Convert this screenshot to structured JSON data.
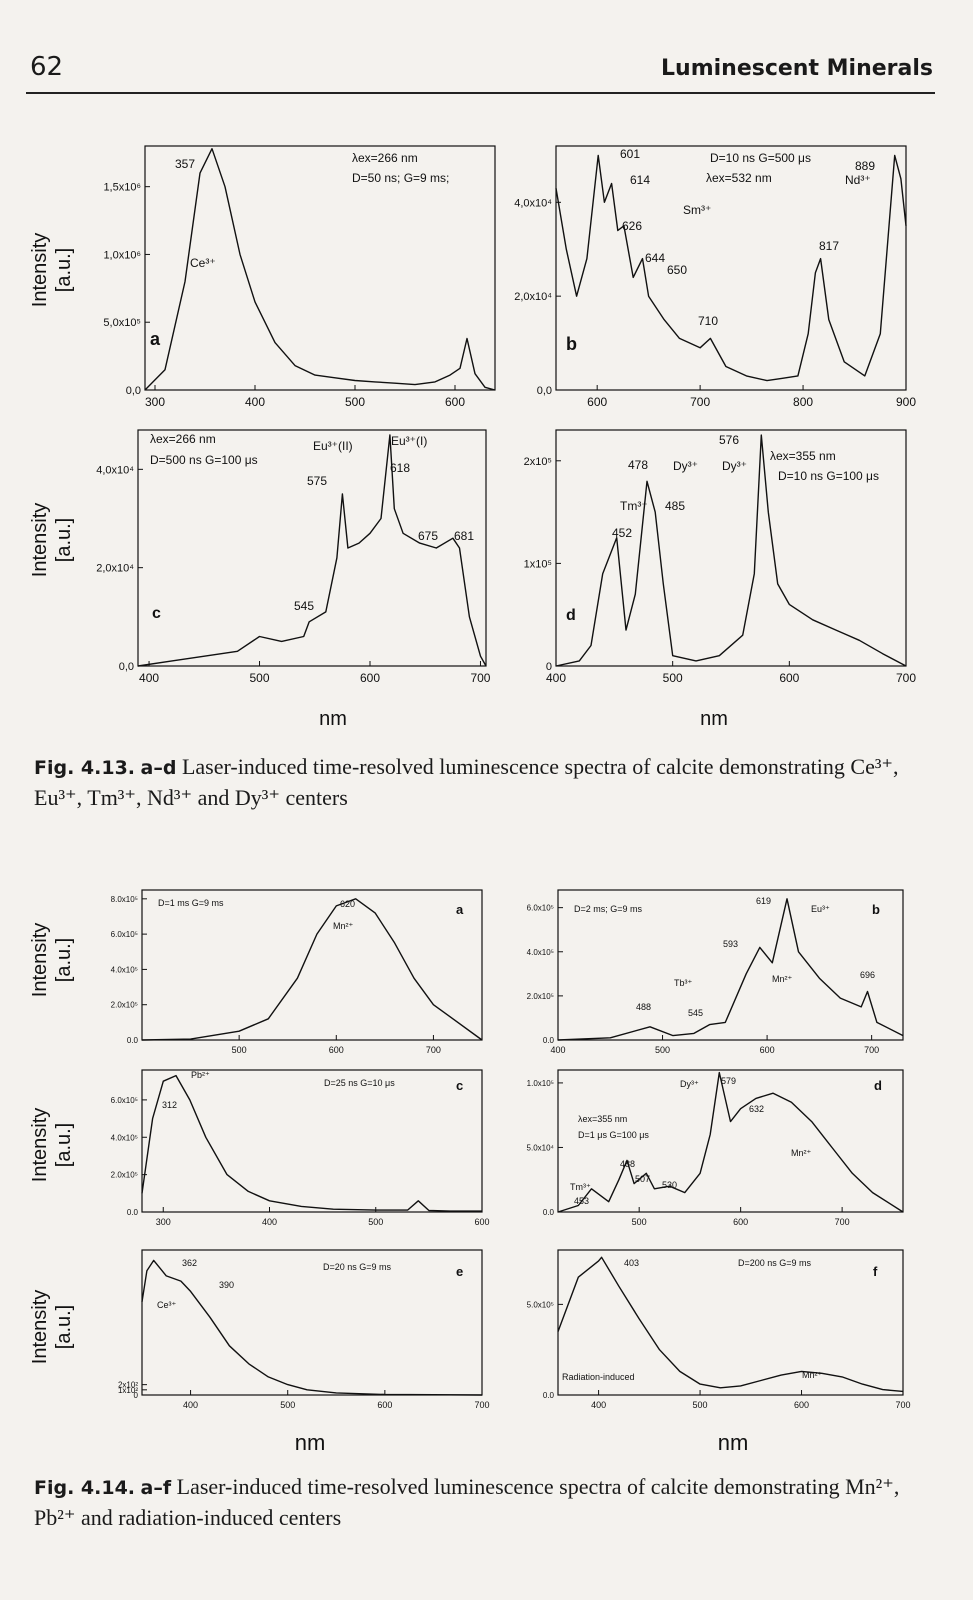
{
  "header": {
    "page_number": "62",
    "running_title": "Luminescent Minerals"
  },
  "fig413": {
    "ylabel": [
      "Intensity",
      "[a.u.]"
    ],
    "xlabel": "nm",
    "caption_label": "Fig. 4.13.",
    "caption_sub": "a–d",
    "caption_text": "Laser-induced time-resolved luminescence spectra of calcite demonstrating Ce³⁺, Eu³⁺, Tm³⁺, Nd³⁺ and Dy³⁺ centers"
  },
  "fig414": {
    "ylabel": [
      "Intensity",
      "[a.u.]"
    ],
    "xlabel": "nm",
    "caption_label": "Fig. 4.14.",
    "caption_sub": "a–f",
    "caption_text": "Laser-induced time-resolved luminescence spectra of calcite demonstrating Mn²⁺, Pb²⁺ and radiation-induced centers"
  },
  "chart_data": [
    {
      "id": "4.13a",
      "type": "line",
      "panel": "a",
      "xlim": [
        290,
        640
      ],
      "ylim": [
        0,
        1800000
      ],
      "xticks": [
        "300",
        "400",
        "500",
        "600"
      ],
      "yticks": [
        "0,0",
        "5,0x10⁵",
        "1,0x10⁶",
        "1,5x10⁶"
      ],
      "annotations": [
        "357",
        "Ce³⁺",
        "λex=266 nm",
        "D=50 ns; G=9 ms;"
      ],
      "x": [
        290,
        310,
        330,
        345,
        357,
        370,
        385,
        400,
        420,
        440,
        460,
        480,
        500,
        520,
        540,
        560,
        580,
        595,
        605,
        612,
        620,
        630,
        640
      ],
      "y": [
        0,
        150000,
        800000,
        1600000,
        1780000,
        1500000,
        1000000,
        650000,
        350000,
        180000,
        110000,
        90000,
        70000,
        60000,
        50000,
        40000,
        60000,
        110000,
        160000,
        380000,
        120000,
        20000,
        0
      ]
    },
    {
      "id": "4.13b",
      "type": "line",
      "panel": "b",
      "xlim": [
        560,
        900
      ],
      "ylim": [
        0,
        52000
      ],
      "xticks": [
        "600",
        "700",
        "800",
        "900"
      ],
      "yticks": [
        "0,0",
        "2,0x10⁴",
        "4,0x10⁴"
      ],
      "annotations": [
        "601",
        "614",
        "626",
        "644",
        "650",
        "710",
        "817",
        "889",
        "Sm³⁺",
        "Nd³⁺",
        "D=10 ns G=500 μs",
        "λex=532 nm"
      ],
      "x": [
        560,
        570,
        580,
        590,
        601,
        607,
        614,
        620,
        626,
        635,
        644,
        650,
        665,
        680,
        700,
        710,
        725,
        745,
        765,
        780,
        795,
        805,
        812,
        817,
        825,
        840,
        860,
        875,
        889,
        895,
        900
      ],
      "y": [
        43000,
        30000,
        20000,
        28000,
        50000,
        40000,
        44000,
        34000,
        35000,
        24000,
        28000,
        20000,
        15000,
        11000,
        9000,
        11000,
        5000,
        3000,
        2000,
        2500,
        3000,
        12000,
        25000,
        28000,
        15000,
        6000,
        3000,
        12000,
        50000,
        45000,
        35000
      ]
    },
    {
      "id": "4.13c",
      "type": "line",
      "panel": "c",
      "xlim": [
        390,
        705
      ],
      "ylim": [
        0,
        48000
      ],
      "xticks": [
        "400",
        "500",
        "600",
        "700"
      ],
      "yticks": [
        "0,0",
        "2,0x10⁴",
        "4,0x10⁴"
      ],
      "annotations": [
        "Eu³⁺(II)",
        "Eu³⁺(I)",
        "575",
        "618",
        "545",
        "675",
        "681",
        "c",
        "λex=266 nm",
        "D=500 ns G=100 μs"
      ],
      "x": [
        390,
        420,
        450,
        480,
        500,
        520,
        540,
        545,
        560,
        570,
        575,
        580,
        590,
        600,
        610,
        618,
        622,
        630,
        645,
        660,
        675,
        681,
        690,
        700,
        705
      ],
      "y": [
        0,
        1000,
        2000,
        3000,
        6000,
        5000,
        6000,
        9000,
        11000,
        22000,
        35000,
        24000,
        25000,
        27000,
        30000,
        47000,
        32000,
        27000,
        25000,
        24000,
        26000,
        24000,
        10000,
        2000,
        0
      ]
    },
    {
      "id": "4.13d",
      "type": "line",
      "panel": "d",
      "xlim": [
        400,
        700
      ],
      "ylim": [
        0,
        230000
      ],
      "xticks": [
        "400",
        "500",
        "600",
        "700"
      ],
      "yticks": [
        "0",
        "1x10⁵",
        "2x10⁵"
      ],
      "annotations": [
        "576",
        "478",
        "485",
        "452",
        "Tm³⁺",
        "Dy³⁺",
        "Dy³⁺",
        "λex=355 nm",
        "D=10 ns G=100 μs",
        "d"
      ],
      "x": [
        400,
        420,
        430,
        440,
        452,
        460,
        468,
        478,
        485,
        492,
        500,
        520,
        540,
        560,
        570,
        576,
        582,
        590,
        600,
        620,
        640,
        660,
        680,
        700
      ],
      "y": [
        0,
        5000,
        20000,
        90000,
        125000,
        35000,
        70000,
        180000,
        150000,
        80000,
        10000,
        5000,
        10000,
        30000,
        90000,
        225000,
        150000,
        80000,
        60000,
        45000,
        35000,
        25000,
        12000,
        0
      ]
    },
    {
      "id": "4.14a",
      "type": "line",
      "panel": "a",
      "xlim": [
        400,
        750
      ],
      "ylim": [
        0,
        850000
      ],
      "xticks": [
        "500",
        "600",
        "700"
      ],
      "yticks": [
        "0.0",
        "2.0x10⁵",
        "4.0x10⁵",
        "6.0x10⁵",
        "8.0x10⁵"
      ],
      "annotations": [
        "620",
        "Mn²⁺",
        "D=1 ms G=9 ms",
        "a"
      ],
      "x": [
        400,
        450,
        500,
        530,
        560,
        580,
        600,
        620,
        640,
        660,
        680,
        700,
        720,
        750
      ],
      "y": [
        0,
        5000,
        50000,
        120000,
        350000,
        600000,
        760000,
        800000,
        720000,
        550000,
        350000,
        200000,
        120000,
        0
      ]
    },
    {
      "id": "4.14b",
      "type": "line",
      "panel": "b",
      "xlim": [
        400,
        730
      ],
      "ylim": [
        0,
        680000
      ],
      "xticks": [
        "400",
        "500",
        "600",
        "700"
      ],
      "yticks": [
        "0.0",
        "2.0x10⁵",
        "4.0x10⁵",
        "6.0x10⁵"
      ],
      "annotations": [
        "619",
        "593",
        "696",
        "488",
        "545",
        "Tb³⁺",
        "Eu³⁺",
        "Mn²⁺",
        "D=2 ms; G=9 ms",
        "b"
      ],
      "x": [
        400,
        450,
        488,
        510,
        530,
        545,
        560,
        580,
        593,
        605,
        619,
        630,
        650,
        670,
        690,
        696,
        705,
        730
      ],
      "y": [
        0,
        10000,
        60000,
        20000,
        30000,
        70000,
        80000,
        300000,
        420000,
        350000,
        640000,
        400000,
        280000,
        190000,
        150000,
        220000,
        80000,
        20000
      ]
    },
    {
      "id": "4.14c",
      "type": "line",
      "panel": "c",
      "xlim": [
        280,
        600
      ],
      "ylim": [
        0,
        760000
      ],
      "xticks": [
        "300",
        "400",
        "500",
        "600"
      ],
      "yticks": [
        "0.0",
        "2.0x10⁵",
        "4.0x10⁵",
        "6.0x10⁵"
      ],
      "annotations": [
        "Pb²⁺",
        "312",
        "D=25 ns G=10 μs",
        "c"
      ],
      "x": [
        280,
        290,
        300,
        312,
        325,
        340,
        360,
        380,
        400,
        430,
        460,
        500,
        530,
        540,
        550,
        570,
        600
      ],
      "y": [
        100000,
        500000,
        700000,
        730000,
        600000,
        400000,
        200000,
        110000,
        60000,
        30000,
        15000,
        10000,
        10000,
        60000,
        8000,
        5000,
        5000
      ]
    },
    {
      "id": "4.14d",
      "type": "line",
      "panel": "d",
      "xlim": [
        420,
        760
      ],
      "ylim": [
        0,
        110000
      ],
      "xticks": [
        "500",
        "600",
        "700"
      ],
      "yticks": [
        "0.0",
        "5.0x10⁴",
        "1.0x10⁵"
      ],
      "annotations": [
        "579",
        "632",
        "488",
        "507",
        "530",
        "453",
        "Dy³⁺",
        "Tm³⁺",
        "Mn²⁺",
        "λex=355 nm",
        "D=1 μs G=100 μs",
        "d"
      ],
      "x": [
        420,
        440,
        453,
        470,
        480,
        488,
        495,
        507,
        515,
        530,
        545,
        560,
        570,
        579,
        590,
        600,
        615,
        632,
        650,
        670,
        690,
        710,
        730,
        760
      ],
      "y": [
        0,
        5000,
        18000,
        8000,
        25000,
        40000,
        22000,
        30000,
        18000,
        20000,
        15000,
        30000,
        60000,
        108000,
        70000,
        80000,
        88000,
        92000,
        85000,
        70000,
        50000,
        30000,
        15000,
        0
      ]
    },
    {
      "id": "4.14e",
      "type": "line",
      "panel": "e",
      "xlim": [
        350,
        700
      ],
      "ylim": [
        0,
        2800
      ],
      "xticks": [
        "400",
        "500",
        "600",
        "700"
      ],
      "yticks": [
        "0",
        "1x10²",
        "2x10²"
      ],
      "annotations": [
        "362",
        "390",
        "Ce³⁺",
        "D=20 ns G=9 ms",
        "e"
      ],
      "x": [
        350,
        355,
        362,
        375,
        390,
        400,
        420,
        440,
        460,
        480,
        500,
        520,
        550,
        600,
        650,
        700
      ],
      "y": [
        1800,
        2400,
        2600,
        2300,
        2200,
        2000,
        1500,
        950,
        600,
        350,
        200,
        100,
        40,
        10,
        5,
        0
      ]
    },
    {
      "id": "4.14f",
      "type": "line",
      "panel": "f",
      "xlim": [
        360,
        700
      ],
      "ylim": [
        0,
        800000
      ],
      "xticks": [
        "400",
        "500",
        "600",
        "700"
      ],
      "yticks": [
        "0.0",
        "5.0x10⁵"
      ],
      "annotations": [
        "403",
        "Mn²⁺",
        "Radiation-induced",
        "D=200 ns G=9 ms",
        "f"
      ],
      "x": [
        360,
        380,
        400,
        403,
        420,
        440,
        460,
        480,
        500,
        520,
        540,
        560,
        580,
        600,
        620,
        640,
        660,
        680,
        700
      ],
      "y": [
        350000,
        650000,
        740000,
        760000,
        600000,
        420000,
        250000,
        130000,
        60000,
        40000,
        50000,
        80000,
        110000,
        130000,
        120000,
        100000,
        60000,
        30000,
        20000
      ]
    }
  ]
}
